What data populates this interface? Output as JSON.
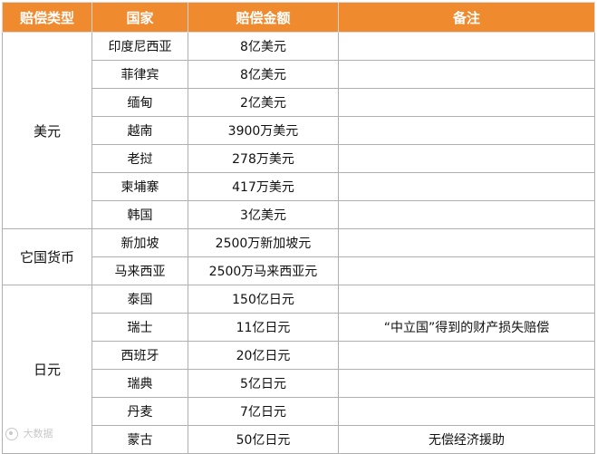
{
  "table": {
    "headers": [
      "赔偿类型",
      "国家",
      "赔偿金额",
      "备注"
    ],
    "groups": [
      {
        "type": "美元",
        "rows": [
          {
            "country": "印度尼西亚",
            "amount": "8亿美元",
            "note": ""
          },
          {
            "country": "菲律宾",
            "amount": "8亿美元",
            "note": ""
          },
          {
            "country": "缅甸",
            "amount": "2亿美元",
            "note": ""
          },
          {
            "country": "越南",
            "amount": "3900万美元",
            "note": ""
          },
          {
            "country": "老挝",
            "amount": "278万美元",
            "note": ""
          },
          {
            "country": "柬埔寨",
            "amount": "417万美元",
            "note": ""
          },
          {
            "country": "韩国",
            "amount": "3亿美元",
            "note": ""
          }
        ]
      },
      {
        "type": "它国货币",
        "rows": [
          {
            "country": "新加坡",
            "amount": "2500万新加坡元",
            "note": ""
          },
          {
            "country": "马来西亚",
            "amount": "2500万马来西亚元",
            "note": ""
          }
        ]
      },
      {
        "type": "日元",
        "rows": [
          {
            "country": "泰国",
            "amount": "150亿日元",
            "note": ""
          },
          {
            "country": "瑞士",
            "amount": "11亿日元",
            "note": "“中立国”得到的财产损失赔偿"
          },
          {
            "country": "西班牙",
            "amount": "20亿日元",
            "note": ""
          },
          {
            "country": "瑞典",
            "amount": "5亿日元",
            "note": ""
          },
          {
            "country": "丹麦",
            "amount": "7亿日元",
            "note": ""
          },
          {
            "country": "蒙古",
            "amount": "50亿日元",
            "note": "无偿经济援助"
          }
        ]
      }
    ]
  },
  "watermark": {
    "text": "大数据",
    "icon": "watermark-logo-icon"
  }
}
